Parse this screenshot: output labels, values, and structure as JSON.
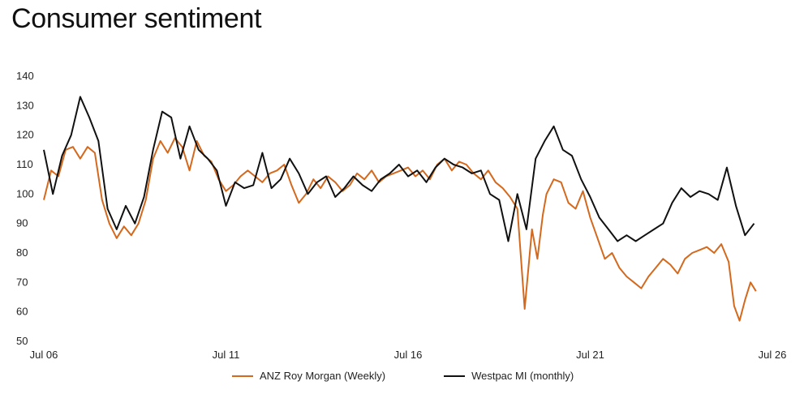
{
  "title": "Consumer sentiment",
  "chart_data": {
    "type": "line",
    "title": "Consumer sentiment",
    "xlabel": "",
    "ylabel": "",
    "x_ticks": [
      "Jul 06",
      "Jul 11",
      "Jul 16",
      "Jul 21",
      "Jul 26"
    ],
    "y_ticks": [
      50,
      60,
      70,
      80,
      90,
      100,
      110,
      120,
      130,
      140
    ],
    "xlim": [
      2006.5,
      2026.5
    ],
    "ylim": [
      50,
      140
    ],
    "grid": false,
    "legend_position": "bottom",
    "series": [
      {
        "name": "ANZ Roy Morgan (Weekly)",
        "color": "#d4691e",
        "x": [
          2006.5,
          2006.7,
          2006.9,
          2007.1,
          2007.3,
          2007.5,
          2007.7,
          2007.9,
          2008.1,
          2008.3,
          2008.5,
          2008.7,
          2008.9,
          2009.1,
          2009.3,
          2009.5,
          2009.7,
          2009.9,
          2010.1,
          2010.3,
          2010.5,
          2010.7,
          2010.9,
          2011.1,
          2011.3,
          2011.5,
          2011.7,
          2011.9,
          2012.1,
          2012.3,
          2012.5,
          2012.7,
          2012.9,
          2013.1,
          2013.3,
          2013.5,
          2013.7,
          2013.9,
          2014.1,
          2014.3,
          2014.5,
          2014.7,
          2014.9,
          2015.1,
          2015.3,
          2015.5,
          2015.7,
          2015.9,
          2016.1,
          2016.3,
          2016.5,
          2016.7,
          2016.9,
          2017.1,
          2017.3,
          2017.5,
          2017.7,
          2017.9,
          2018.1,
          2018.3,
          2018.5,
          2018.7,
          2018.9,
          2019.1,
          2019.3,
          2019.5,
          2019.7,
          2019.9,
          2020.05,
          2020.2,
          2020.3,
          2020.5,
          2020.7,
          2020.9,
          2021.1,
          2021.3,
          2021.5,
          2021.7,
          2021.9,
          2022.1,
          2022.3,
          2022.5,
          2022.7,
          2022.9,
          2023.1,
          2023.3,
          2023.5,
          2023.7,
          2023.9,
          2024.1,
          2024.3,
          2024.5,
          2024.7,
          2024.9,
          2025.1,
          2025.3,
          2025.45,
          2025.6,
          2025.75,
          2025.9,
          2026.05
        ],
        "y": [
          98,
          108,
          106,
          115,
          116,
          112,
          116,
          114,
          98,
          90,
          85,
          89,
          86,
          90,
          98,
          112,
          118,
          114,
          119,
          116,
          108,
          118,
          113,
          111,
          105,
          101,
          103,
          106,
          108,
          106,
          104,
          107,
          108,
          110,
          103,
          97,
          100,
          105,
          102,
          106,
          104,
          101,
          103,
          107,
          105,
          108,
          104,
          106,
          107,
          108,
          109,
          106,
          108,
          105,
          110,
          112,
          108,
          111,
          110,
          107,
          105,
          108,
          104,
          102,
          99,
          95,
          61,
          88,
          78,
          93,
          100,
          105,
          104,
          97,
          95,
          101,
          92,
          85,
          78,
          80,
          75,
          72,
          70,
          68,
          72,
          75,
          78,
          76,
          73,
          78,
          80,
          81,
          82,
          80,
          83,
          77,
          62,
          57,
          64,
          70,
          67
        ]
      },
      {
        "name": "Westpac MI (monthly)",
        "color": "#111111",
        "x": [
          2006.5,
          2006.75,
          2007.0,
          2007.25,
          2007.5,
          2007.75,
          2008.0,
          2008.25,
          2008.5,
          2008.75,
          2009.0,
          2009.25,
          2009.5,
          2009.75,
          2010.0,
          2010.25,
          2010.5,
          2010.75,
          2011.0,
          2011.25,
          2011.5,
          2011.75,
          2012.0,
          2012.25,
          2012.5,
          2012.75,
          2013.0,
          2013.25,
          2013.5,
          2013.75,
          2014.0,
          2014.25,
          2014.5,
          2014.75,
          2015.0,
          2015.25,
          2015.5,
          2015.75,
          2016.0,
          2016.25,
          2016.5,
          2016.75,
          2017.0,
          2017.25,
          2017.5,
          2017.75,
          2018.0,
          2018.25,
          2018.5,
          2018.75,
          2019.0,
          2019.25,
          2019.5,
          2019.75,
          2020.0,
          2020.25,
          2020.5,
          2020.75,
          2021.0,
          2021.25,
          2021.5,
          2021.75,
          2022.0,
          2022.25,
          2022.5,
          2022.75,
          2023.0,
          2023.25,
          2023.5,
          2023.75,
          2024.0,
          2024.25,
          2024.5,
          2024.75,
          2025.0,
          2025.25,
          2025.5,
          2025.75,
          2026.0
        ],
        "y": [
          115,
          100,
          113,
          120,
          133,
          126,
          118,
          95,
          88,
          96,
          90,
          99,
          115,
          128,
          126,
          112,
          123,
          115,
          112,
          108,
          96,
          104,
          102,
          103,
          114,
          102,
          105,
          112,
          107,
          100,
          104,
          106,
          99,
          102,
          106,
          103,
          101,
          105,
          107,
          110,
          106,
          108,
          104,
          109,
          112,
          110,
          109,
          107,
          108,
          100,
          98,
          84,
          100,
          88,
          112,
          118,
          123,
          115,
          113,
          105,
          99,
          92,
          88,
          84,
          86,
          84,
          86,
          88,
          90,
          97,
          102,
          99,
          101,
          100,
          98,
          109,
          96,
          86,
          90
        ]
      }
    ]
  }
}
